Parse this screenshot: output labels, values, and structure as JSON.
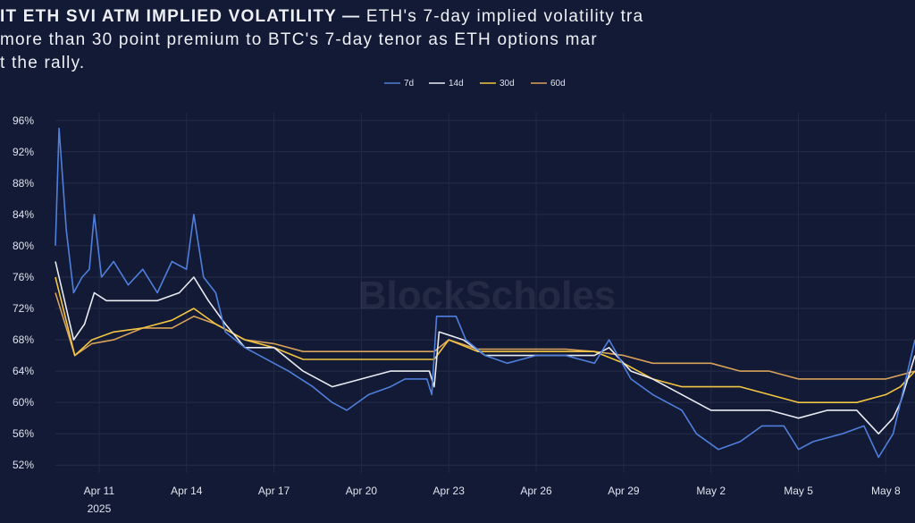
{
  "title": {
    "line1_bold": "IT ETH SVI ATM IMPLIED VOLATILITY —",
    "line1_rest": " ETH's 7-day implied volatility tra",
    "line2": " more than 30 point premium to BTC's 7-day tenor as ETH options mar",
    "line3": "t the rally."
  },
  "watermark": "BlockScholes",
  "chart_data": {
    "type": "line",
    "title": "",
    "xlabel": "",
    "ylabel": "",
    "ylim": [
      51,
      97
    ],
    "xlim": [
      "2025-04-09T12:00",
      "2025-05-09T00:00"
    ],
    "y_ticks": [
      "52%",
      "56%",
      "60%",
      "64%",
      "68%",
      "72%",
      "76%",
      "80%",
      "84%",
      "88%",
      "92%",
      "96%"
    ],
    "y_tick_values": [
      52,
      56,
      60,
      64,
      68,
      72,
      76,
      80,
      84,
      88,
      92,
      96
    ],
    "x_ticks": [
      {
        "date": "2025-04-11",
        "label": "Apr 11",
        "sub": "2025"
      },
      {
        "date": "2025-04-14",
        "label": "Apr 14"
      },
      {
        "date": "2025-04-17",
        "label": "Apr 17"
      },
      {
        "date": "2025-04-20",
        "label": "Apr 20"
      },
      {
        "date": "2025-04-23",
        "label": "Apr 23"
      },
      {
        "date": "2025-04-26",
        "label": "Apr 26"
      },
      {
        "date": "2025-04-29",
        "label": "Apr 29"
      },
      {
        "date": "2025-05-02",
        "label": "May 2"
      },
      {
        "date": "2025-05-05",
        "label": "May 5"
      },
      {
        "date": "2025-05-08",
        "label": "May 8"
      }
    ],
    "grid": true,
    "legend_position": "top-center",
    "background": "#131a35",
    "series": [
      {
        "name": "7d",
        "color": "#4f7fdc",
        "points": [
          [
            "2025-04-09T12:00",
            80
          ],
          [
            "2025-04-09T15:00",
            95
          ],
          [
            "2025-04-09T21:00",
            82
          ],
          [
            "2025-04-10T03:00",
            74
          ],
          [
            "2025-04-10T10:00",
            76
          ],
          [
            "2025-04-10T16:00",
            77
          ],
          [
            "2025-04-10T20:00",
            84
          ],
          [
            "2025-04-11T02:00",
            76
          ],
          [
            "2025-04-11T12:00",
            78
          ],
          [
            "2025-04-12T00:00",
            75
          ],
          [
            "2025-04-12T12:00",
            77
          ],
          [
            "2025-04-13T00:00",
            74
          ],
          [
            "2025-04-13T12:00",
            78
          ],
          [
            "2025-04-14T00:00",
            77
          ],
          [
            "2025-04-14T06:00",
            84
          ],
          [
            "2025-04-14T14:00",
            76
          ],
          [
            "2025-04-15T00:00",
            74
          ],
          [
            "2025-04-15T08:00",
            69
          ],
          [
            "2025-04-16T00:00",
            67
          ],
          [
            "2025-04-17T00:00",
            65
          ],
          [
            "2025-04-17T12:00",
            64
          ],
          [
            "2025-04-18T08:00",
            62
          ],
          [
            "2025-04-19T00:00",
            60
          ],
          [
            "2025-04-19T12:00",
            59
          ],
          [
            "2025-04-20T06:00",
            61
          ],
          [
            "2025-04-21T00:00",
            62
          ],
          [
            "2025-04-21T12:00",
            63
          ],
          [
            "2025-04-22T06:00",
            63
          ],
          [
            "2025-04-22T10:00",
            61
          ],
          [
            "2025-04-22T14:00",
            71
          ],
          [
            "2025-04-23T06:00",
            71
          ],
          [
            "2025-04-23T14:00",
            68
          ],
          [
            "2025-04-24T06:00",
            66
          ],
          [
            "2025-04-25T00:00",
            65
          ],
          [
            "2025-04-26T00:00",
            66
          ],
          [
            "2025-04-27T00:00",
            66
          ],
          [
            "2025-04-28T00:00",
            65
          ],
          [
            "2025-04-28T12:00",
            68
          ],
          [
            "2025-04-29T06:00",
            63
          ],
          [
            "2025-04-30T00:00",
            61
          ],
          [
            "2025-05-01T00:00",
            59
          ],
          [
            "2025-05-01T12:00",
            56
          ],
          [
            "2025-05-02T06:00",
            54
          ],
          [
            "2025-05-03T00:00",
            55
          ],
          [
            "2025-05-03T18:00",
            57
          ],
          [
            "2025-05-04T12:00",
            57
          ],
          [
            "2025-05-05T00:00",
            54
          ],
          [
            "2025-05-05T12:00",
            55
          ],
          [
            "2025-05-06T12:00",
            56
          ],
          [
            "2025-05-07T06:00",
            57
          ],
          [
            "2025-05-07T18:00",
            53
          ],
          [
            "2025-05-08T06:00",
            56
          ],
          [
            "2025-05-08T12:00",
            60
          ],
          [
            "2025-05-09T00:00",
            68
          ]
        ]
      },
      {
        "name": "14d",
        "color": "#e9ebf2",
        "points": [
          [
            "2025-04-09T12:00",
            78
          ],
          [
            "2025-04-09T18:00",
            74
          ],
          [
            "2025-04-10T03:00",
            68
          ],
          [
            "2025-04-10T12:00",
            70
          ],
          [
            "2025-04-10T20:00",
            74
          ],
          [
            "2025-04-11T06:00",
            73
          ],
          [
            "2025-04-12T00:00",
            73
          ],
          [
            "2025-04-13T00:00",
            73
          ],
          [
            "2025-04-13T18:00",
            74
          ],
          [
            "2025-04-14T06:00",
            76
          ],
          [
            "2025-04-14T18:00",
            73
          ],
          [
            "2025-04-15T08:00",
            70
          ],
          [
            "2025-04-16T00:00",
            67
          ],
          [
            "2025-04-17T00:00",
            67
          ],
          [
            "2025-04-18T00:00",
            64
          ],
          [
            "2025-04-19T00:00",
            62
          ],
          [
            "2025-04-20T00:00",
            63
          ],
          [
            "2025-04-21T00:00",
            64
          ],
          [
            "2025-04-22T08:00",
            64
          ],
          [
            "2025-04-22T12:00",
            62
          ],
          [
            "2025-04-22T16:00",
            69
          ],
          [
            "2025-04-23T12:00",
            68
          ],
          [
            "2025-04-24T06:00",
            66
          ],
          [
            "2025-04-25T00:00",
            66
          ],
          [
            "2025-04-26T00:00",
            66
          ],
          [
            "2025-04-27T00:00",
            66
          ],
          [
            "2025-04-28T00:00",
            66
          ],
          [
            "2025-04-28T12:00",
            67
          ],
          [
            "2025-04-29T06:00",
            64
          ],
          [
            "2025-04-30T00:00",
            63
          ],
          [
            "2025-05-01T00:00",
            61
          ],
          [
            "2025-05-02T00:00",
            59
          ],
          [
            "2025-05-03T00:00",
            59
          ],
          [
            "2025-05-04T00:00",
            59
          ],
          [
            "2025-05-05T00:00",
            58
          ],
          [
            "2025-05-06T00:00",
            59
          ],
          [
            "2025-05-07T00:00",
            59
          ],
          [
            "2025-05-07T18:00",
            56
          ],
          [
            "2025-05-08T06:00",
            58
          ],
          [
            "2025-05-08T12:00",
            60
          ],
          [
            "2025-05-09T00:00",
            66
          ]
        ]
      },
      {
        "name": "30d",
        "color": "#f2c542",
        "points": [
          [
            "2025-04-09T12:00",
            76
          ],
          [
            "2025-04-09T20:00",
            71
          ],
          [
            "2025-04-10T04:00",
            66
          ],
          [
            "2025-04-10T18:00",
            68
          ],
          [
            "2025-04-11T12:00",
            69
          ],
          [
            "2025-04-12T12:00",
            69.5
          ],
          [
            "2025-04-13T12:00",
            70.5
          ],
          [
            "2025-04-14T06:00",
            72
          ],
          [
            "2025-04-15T00:00",
            70
          ],
          [
            "2025-04-16T00:00",
            68
          ],
          [
            "2025-04-17T00:00",
            67
          ],
          [
            "2025-04-18T00:00",
            65.5
          ],
          [
            "2025-04-19T00:00",
            65.5
          ],
          [
            "2025-04-20T00:00",
            65.5
          ],
          [
            "2025-04-21T00:00",
            65.5
          ],
          [
            "2025-04-22T12:00",
            65.5
          ],
          [
            "2025-04-23T00:00",
            68
          ],
          [
            "2025-04-24T00:00",
            66.5
          ],
          [
            "2025-04-25T00:00",
            66.5
          ],
          [
            "2025-04-26T00:00",
            66.5
          ],
          [
            "2025-04-27T00:00",
            66.5
          ],
          [
            "2025-04-28T00:00",
            66.5
          ],
          [
            "2025-04-29T00:00",
            65
          ],
          [
            "2025-04-30T00:00",
            63
          ],
          [
            "2025-05-01T00:00",
            62
          ],
          [
            "2025-05-02T00:00",
            62
          ],
          [
            "2025-05-03T00:00",
            62
          ],
          [
            "2025-05-04T00:00",
            61
          ],
          [
            "2025-05-05T00:00",
            60
          ],
          [
            "2025-05-06T00:00",
            60
          ],
          [
            "2025-05-07T00:00",
            60
          ],
          [
            "2025-05-08T00:00",
            61
          ],
          [
            "2025-05-08T12:00",
            62
          ],
          [
            "2025-05-09T00:00",
            64
          ]
        ]
      },
      {
        "name": "60d",
        "color": "#d9a25a",
        "points": [
          [
            "2025-04-09T12:00",
            74
          ],
          [
            "2025-04-09T20:00",
            70
          ],
          [
            "2025-04-10T04:00",
            66
          ],
          [
            "2025-04-10T18:00",
            67.5
          ],
          [
            "2025-04-11T12:00",
            68
          ],
          [
            "2025-04-12T12:00",
            69.5
          ],
          [
            "2025-04-13T12:00",
            69.5
          ],
          [
            "2025-04-14T06:00",
            71
          ],
          [
            "2025-04-15T00:00",
            70
          ],
          [
            "2025-04-16T00:00",
            68
          ],
          [
            "2025-04-17T00:00",
            67.5
          ],
          [
            "2025-04-18T00:00",
            66.5
          ],
          [
            "2025-04-19T00:00",
            66.5
          ],
          [
            "2025-04-20T00:00",
            66.5
          ],
          [
            "2025-04-21T00:00",
            66.5
          ],
          [
            "2025-04-22T12:00",
            66.5
          ],
          [
            "2025-04-23T00:00",
            68
          ],
          [
            "2025-04-24T00:00",
            66.8
          ],
          [
            "2025-04-25T00:00",
            66.8
          ],
          [
            "2025-04-26T00:00",
            66.8
          ],
          [
            "2025-04-27T00:00",
            66.8
          ],
          [
            "2025-04-28T00:00",
            66.5
          ],
          [
            "2025-04-29T00:00",
            66
          ],
          [
            "2025-04-30T00:00",
            65
          ],
          [
            "2025-05-01T00:00",
            65
          ],
          [
            "2025-05-02T00:00",
            65
          ],
          [
            "2025-05-03T00:00",
            64
          ],
          [
            "2025-05-04T00:00",
            64
          ],
          [
            "2025-05-05T00:00",
            63
          ],
          [
            "2025-05-06T00:00",
            63
          ],
          [
            "2025-05-07T00:00",
            63
          ],
          [
            "2025-05-08T00:00",
            63
          ],
          [
            "2025-05-09T00:00",
            64
          ]
        ]
      }
    ]
  }
}
